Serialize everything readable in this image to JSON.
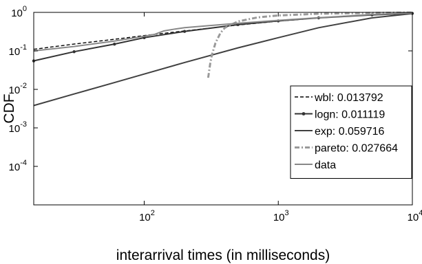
{
  "chart_data": {
    "type": "line",
    "xlabel": "interarrival times (in milliseconds)",
    "ylabel": "CDF",
    "xscale": "log",
    "yscale": "log",
    "xlim": [
      15,
      10000
    ],
    "ylim": [
      1e-05,
      1
    ],
    "x_ticks": [
      {
        "value": 100,
        "base": "10",
        "exp": "2"
      },
      {
        "value": 1000,
        "base": "10",
        "exp": "3"
      },
      {
        "value": 10000,
        "base": "10",
        "exp": "4"
      }
    ],
    "y_ticks": [
      {
        "value": 1,
        "base": "10",
        "exp": "0"
      },
      {
        "value": 0.1,
        "base": "10",
        "exp": "-1"
      },
      {
        "value": 0.01,
        "base": "10",
        "exp": "-2"
      },
      {
        "value": 0.001,
        "base": "10",
        "exp": "-3"
      },
      {
        "value": 0.0001,
        "base": "10",
        "exp": "-4"
      }
    ],
    "grid": false,
    "legend_position": "right",
    "series": [
      {
        "name": "wbl: 0.013792",
        "color": "#000000",
        "style": "dashed",
        "x": [
          15,
          30,
          60,
          100,
          200,
          500,
          1000,
          2000,
          5000,
          10000
        ],
        "y": [
          0.11,
          0.15,
          0.2,
          0.25,
          0.33,
          0.47,
          0.59,
          0.72,
          0.88,
          0.96
        ]
      },
      {
        "name": "logn: 0.011119",
        "color": "#333333",
        "style": "solid-dot",
        "x": [
          15,
          30,
          60,
          100,
          200,
          500,
          1000,
          2000,
          5000,
          10000
        ],
        "y": [
          0.055,
          0.095,
          0.15,
          0.22,
          0.32,
          0.48,
          0.6,
          0.72,
          0.86,
          0.94
        ]
      },
      {
        "name": "exp: 0.059716",
        "color": "#404040",
        "style": "solid",
        "x": [
          15,
          30,
          60,
          100,
          200,
          500,
          1000,
          2000,
          5000,
          10000
        ],
        "y": [
          0.0038,
          0.0076,
          0.015,
          0.025,
          0.05,
          0.12,
          0.22,
          0.4,
          0.72,
          0.93
        ]
      },
      {
        "name": "pareto: 0.027664",
        "color": "#999999",
        "style": "dash-dot",
        "x": [
          300,
          305,
          310,
          320,
          340,
          370,
          400,
          500,
          700,
          1000,
          2000,
          5000,
          10000
        ],
        "y": [
          0.02,
          0.03,
          0.045,
          0.08,
          0.16,
          0.29,
          0.4,
          0.58,
          0.74,
          0.83,
          0.92,
          0.97,
          0.99
        ]
      },
      {
        "name": "data",
        "color": "#888888",
        "style": "solid",
        "x": [
          15,
          30,
          60,
          100,
          120,
          140,
          170,
          200,
          300,
          500,
          1000,
          2000,
          5000,
          10000
        ],
        "y": [
          0.1,
          0.13,
          0.18,
          0.24,
          0.27,
          0.33,
          0.37,
          0.4,
          0.45,
          0.52,
          0.62,
          0.73,
          0.88,
          0.96
        ]
      }
    ]
  }
}
